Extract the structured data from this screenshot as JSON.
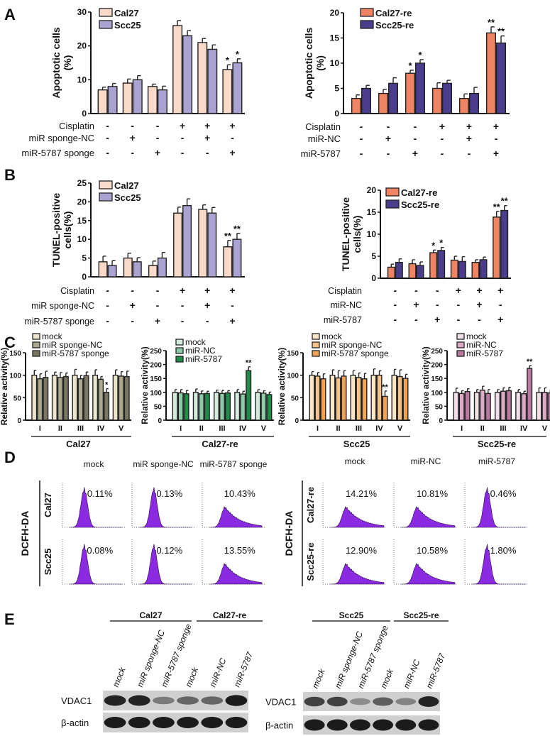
{
  "panel_labels": [
    "A",
    "B",
    "C",
    "D",
    "E"
  ],
  "colors": {
    "cal27": "#f9d9c8",
    "scc25": "#aaa3d2",
    "cal27_re": "#ef8465",
    "scc25_re": "#4b3c8c",
    "histogram": "#8a2be2",
    "c_cal27": [
      "#ebe6cc",
      "#aca98e",
      "#7b7762"
    ],
    "c_cal27_re": [
      "#d3ecdc",
      "#8ecaa8",
      "#1f8c4a"
    ],
    "c_scc25": [
      "#fde6c6",
      "#f6c28c",
      "#f1a353"
    ],
    "c_scc25_re": [
      "#f1dfe9",
      "#dbabc6",
      "#b97aa2"
    ]
  },
  "chart_data": [
    {
      "id": "A-left",
      "type": "bar",
      "ylabel": [
        "Apoptotic cells",
        "(%)"
      ],
      "ylim": [
        0,
        30
      ],
      "yticks": [
        "0",
        "10",
        "20",
        "30"
      ],
      "series": [
        {
          "name": "Cal27",
          "values": [
            7,
            9,
            8,
            26,
            21,
            13
          ],
          "errors": [
            0.8,
            1.2,
            0.7,
            1.5,
            1.2,
            1.4
          ]
        },
        {
          "name": "Scc25",
          "values": [
            8,
            10,
            7,
            23,
            19,
            15
          ],
          "errors": [
            0.9,
            1.2,
            1.1,
            1.5,
            1.3,
            1.2
          ]
        }
      ],
      "significance": [
        {
          "group": 5,
          "series": 0,
          "mark": "*"
        },
        {
          "group": 5,
          "series": 1,
          "mark": "*"
        }
      ],
      "treatments": [
        {
          "label": "Cisplatin",
          "signs": [
            "-",
            "-",
            "-",
            "+",
            "+",
            "+"
          ]
        },
        {
          "label": "miR sponge-NC",
          "signs": [
            "-",
            "+",
            "-",
            "-",
            "+",
            "-"
          ]
        },
        {
          "label": "miR-5787 sponge",
          "signs": [
            "-",
            "-",
            "+",
            "-",
            "-",
            "+"
          ]
        }
      ]
    },
    {
      "id": "A-right",
      "type": "bar",
      "ylabel": [
        "Apoptotic cells",
        "(%)"
      ],
      "ylim": [
        0,
        20
      ],
      "yticks": [
        "0",
        "5",
        "10",
        "15",
        "20"
      ],
      "series": [
        {
          "name": "Cal27-re",
          "values": [
            3,
            4,
            8,
            5,
            3,
            16
          ],
          "errors": [
            0.7,
            0.8,
            0.6,
            1.1,
            0.9,
            1.2
          ]
        },
        {
          "name": "Scc25-re",
          "values": [
            5,
            6,
            10,
            6,
            4,
            14
          ],
          "errors": [
            0.6,
            1.1,
            0.7,
            0.6,
            1.2,
            1.4
          ]
        }
      ],
      "significance": [
        {
          "group": 2,
          "series": 0,
          "mark": "*"
        },
        {
          "group": 2,
          "series": 1,
          "mark": "*"
        },
        {
          "group": 5,
          "series": 0,
          "mark": "**"
        },
        {
          "group": 5,
          "series": 1,
          "mark": "**"
        }
      ],
      "treatments": [
        {
          "label": "Cisplatin",
          "signs": [
            "-",
            "-",
            "-",
            "+",
            "+",
            "+"
          ]
        },
        {
          "label": "miR-NC",
          "signs": [
            "-",
            "+",
            "-",
            "-",
            "+",
            "-"
          ]
        },
        {
          "label": "miR-5787",
          "signs": [
            "-",
            "-",
            "+",
            "-",
            "-",
            "+"
          ]
        }
      ]
    },
    {
      "id": "B-left",
      "type": "bar",
      "ylabel": [
        "TUNEL-positive",
        "cells(%)"
      ],
      "ylim": [
        0,
        25
      ],
      "yticks": [
        "0",
        "5",
        "10",
        "15",
        "20",
        "25"
      ],
      "series": [
        {
          "name": "Cal27",
          "values": [
            4,
            5,
            3,
            17,
            18,
            8
          ],
          "errors": [
            1.5,
            1.3,
            1.2,
            1.6,
            1.2,
            1.7
          ]
        },
        {
          "name": "Scc25",
          "values": [
            3,
            4,
            5,
            19,
            17,
            10
          ],
          "errors": [
            1.3,
            1.1,
            1.5,
            1.8,
            1.5,
            1.6
          ]
        }
      ],
      "significance": [
        {
          "group": 5,
          "series": 0,
          "mark": "**"
        },
        {
          "group": 5,
          "series": 1,
          "mark": "**"
        }
      ],
      "treatments": [
        {
          "label": "Cisplatin",
          "signs": [
            "-",
            "-",
            "-",
            "+",
            "+",
            "+"
          ]
        },
        {
          "label": "miR sponge-NC",
          "signs": [
            "-",
            "+",
            "-",
            "-",
            "+",
            "-"
          ]
        },
        {
          "label": "miR-5787 sponge",
          "signs": [
            "-",
            "-",
            "+",
            "-",
            "-",
            "+"
          ]
        }
      ]
    },
    {
      "id": "B-right",
      "type": "bar",
      "ylabel": [
        "TUNEL-positive",
        "cells(%)"
      ],
      "ylim": [
        0,
        20
      ],
      "yticks": [
        "0",
        "5",
        "10",
        "15",
        "20"
      ],
      "series": [
        {
          "name": "Cal27-re",
          "values": [
            2.5,
            3.3,
            5.8,
            4.1,
            3.6,
            13.9
          ],
          "errors": [
            0.7,
            0.9,
            0.6,
            0.9,
            0.6,
            1.3
          ]
        },
        {
          "name": "Scc25-re",
          "values": [
            3.6,
            2.9,
            6.3,
            3.8,
            4.2,
            15.4
          ],
          "errors": [
            0.8,
            0.8,
            0.7,
            1.1,
            0.6,
            1.1
          ]
        }
      ],
      "significance": [
        {
          "group": 2,
          "series": 0,
          "mark": "*"
        },
        {
          "group": 2,
          "series": 1,
          "mark": "*"
        },
        {
          "group": 5,
          "series": 0,
          "mark": "**"
        },
        {
          "group": 5,
          "series": 1,
          "mark": "**"
        }
      ],
      "treatments": [
        {
          "label": "Cisplatin",
          "signs": [
            "-",
            "-",
            "-",
            "+",
            "+",
            "+"
          ]
        },
        {
          "label": "miR-NC",
          "signs": [
            "-",
            "+",
            "-",
            "-",
            "+",
            "-"
          ]
        },
        {
          "label": "miR-5787",
          "signs": [
            "-",
            "-",
            "+",
            "-",
            "-",
            "+"
          ]
        }
      ]
    },
    {
      "id": "C-1",
      "type": "bar",
      "ylabel": [
        "Relative activity(%)"
      ],
      "ylim": [
        0,
        150
      ],
      "yticks": [
        "0",
        "50",
        "100",
        "150"
      ],
      "categories": [
        "I",
        "II",
        "III",
        "IV",
        "V"
      ],
      "group_label": "Cal27",
      "series": [
        {
          "name": "mock",
          "values": [
            100,
            100,
            100,
            100,
            100
          ],
          "errors": [
            11,
            7,
            13,
            12,
            12
          ]
        },
        {
          "name": "miR sponge-NC",
          "values": [
            92,
            95,
            92,
            91,
            98
          ],
          "errors": [
            11,
            11,
            8,
            6,
            10
          ]
        },
        {
          "name": "miR-5787 sponge",
          "values": [
            95,
            97,
            99,
            62,
            97
          ],
          "errors": [
            14,
            8,
            8,
            8,
            12
          ]
        }
      ],
      "significance": [
        {
          "group": 3,
          "series": 2,
          "mark": "*"
        }
      ]
    },
    {
      "id": "C-2",
      "type": "bar",
      "ylabel": [
        "Relative activity(%)"
      ],
      "ylim": [
        0,
        250
      ],
      "yticks": [
        "0",
        "50",
        "100",
        "150",
        "200",
        "250"
      ],
      "categories": [
        "I",
        "II",
        "III",
        "IV",
        "V"
      ],
      "group_label": "Cal27-re",
      "series": [
        {
          "name": "mock",
          "values": [
            100,
            100,
            100,
            100,
            100
          ],
          "errors": [
            10,
            12,
            8,
            10,
            10
          ]
        },
        {
          "name": "miR-NC",
          "values": [
            98,
            95,
            96,
            94,
            97
          ],
          "errors": [
            12,
            10,
            11,
            10,
            9
          ]
        },
        {
          "name": "miR-5787",
          "values": [
            95,
            96,
            98,
            178,
            92
          ],
          "errors": [
            12,
            8,
            8,
            14,
            9
          ]
        }
      ],
      "significance": [
        {
          "group": 3,
          "series": 2,
          "mark": "**"
        }
      ]
    },
    {
      "id": "C-3",
      "type": "bar",
      "ylabel": [
        "Relative activity(%)"
      ],
      "ylim": [
        0,
        150
      ],
      "yticks": [
        "0",
        "50",
        "100",
        "150"
      ],
      "categories": [
        "I",
        "II",
        "III",
        "IV",
        "V"
      ],
      "group_label": "Scc25",
      "series": [
        {
          "name": "mock",
          "values": [
            100,
            100,
            100,
            100,
            100
          ],
          "errors": [
            8,
            12,
            10,
            14,
            13
          ]
        },
        {
          "name": "miR sponge-NC",
          "values": [
            98,
            94,
            95,
            100,
            97
          ],
          "errors": [
            8,
            16,
            10,
            10,
            15
          ]
        },
        {
          "name": "miR-5787 sponge",
          "values": [
            92,
            98,
            92,
            53,
            93
          ],
          "errors": [
            11,
            12,
            12,
            12,
            9
          ]
        }
      ],
      "significance": [
        {
          "group": 3,
          "series": 2,
          "mark": "**"
        }
      ]
    },
    {
      "id": "C-4",
      "type": "bar",
      "ylabel": [
        "Relative activity(%)"
      ],
      "ylim": [
        0,
        250
      ],
      "yticks": [
        "0",
        "50",
        "100",
        "150",
        "200",
        "250"
      ],
      "categories": [
        "I",
        "II",
        "III",
        "IV",
        "V"
      ],
      "group_label": "Scc25-re",
      "series": [
        {
          "name": "mock",
          "values": [
            100,
            100,
            100,
            100,
            100
          ],
          "errors": [
            15,
            10,
            10,
            10,
            16
          ]
        },
        {
          "name": "miR-NC",
          "values": [
            96,
            108,
            104,
            95,
            100
          ],
          "errors": [
            10,
            14,
            12,
            9,
            16
          ]
        },
        {
          "name": "miR-5787",
          "values": [
            103,
            96,
            106,
            186,
            98
          ],
          "errors": [
            10,
            14,
            12,
            10,
            12
          ]
        }
      ],
      "significance": [
        {
          "group": 3,
          "series": 2,
          "mark": "**"
        }
      ]
    }
  ],
  "panel_d": {
    "left": {
      "ylabel": "DCFH-DA",
      "columns": [
        "mock",
        "miR sponge-NC",
        "miR-5787 sponge"
      ],
      "rows": [
        "Cal27",
        "Scc25"
      ],
      "percents": [
        [
          "0.11%",
          "0.13%",
          "10.43%"
        ],
        [
          "0.08%",
          "0.12%",
          "13.55%"
        ]
      ],
      "shapes": [
        [
          "narrow",
          "narrow",
          "broad"
        ],
        [
          "narrow",
          "narrow",
          "broad"
        ]
      ]
    },
    "right": {
      "ylabel": "DCFH-DA",
      "columns": [
        "mock",
        "miR-NC",
        "miR-5787"
      ],
      "rows": [
        "Cal27-re",
        "Scc25-re"
      ],
      "percents": [
        [
          "14.21%",
          "10.81%",
          "0.46%"
        ],
        [
          "12.90%",
          "10.58%",
          "1.80%"
        ]
      ],
      "shapes": [
        [
          "broad",
          "broad",
          "narrow"
        ],
        [
          "broad",
          "broad",
          "narrow"
        ]
      ]
    }
  },
  "panel_e": {
    "left": {
      "groups": [
        "Cal27",
        "Cal27-re"
      ],
      "lanes": [
        "mock",
        "miR sponge-NC",
        "miR-5787 sponge",
        "mock",
        "miR-NC",
        "miR-5787"
      ],
      "rows": [
        {
          "label": "VDAC1",
          "band_intensity": [
            0.9,
            0.9,
            0.45,
            0.55,
            0.55,
            0.95
          ]
        },
        {
          "label": "β-actin",
          "band_intensity": [
            0.95,
            0.95,
            0.95,
            0.95,
            0.95,
            0.95
          ]
        }
      ]
    },
    "right": {
      "groups": [
        "Scc25",
        "Scc25-re"
      ],
      "lanes": [
        "mock",
        "miR sponge-NC",
        "miR-5787 sponge",
        "mock",
        "miR-NC",
        "miR-5787"
      ],
      "rows": [
        {
          "label": "VDAC1",
          "band_intensity": [
            0.75,
            0.75,
            0.35,
            0.6,
            0.4,
            0.9
          ]
        },
        {
          "label": "β-actin",
          "band_intensity": [
            0.95,
            0.95,
            0.95,
            0.95,
            0.95,
            0.95
          ]
        }
      ]
    }
  }
}
